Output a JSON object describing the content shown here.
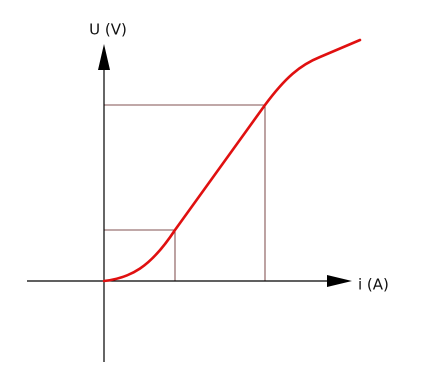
{
  "axes": {
    "y_label": "U (V)",
    "x_label": "i (A)"
  }
}
